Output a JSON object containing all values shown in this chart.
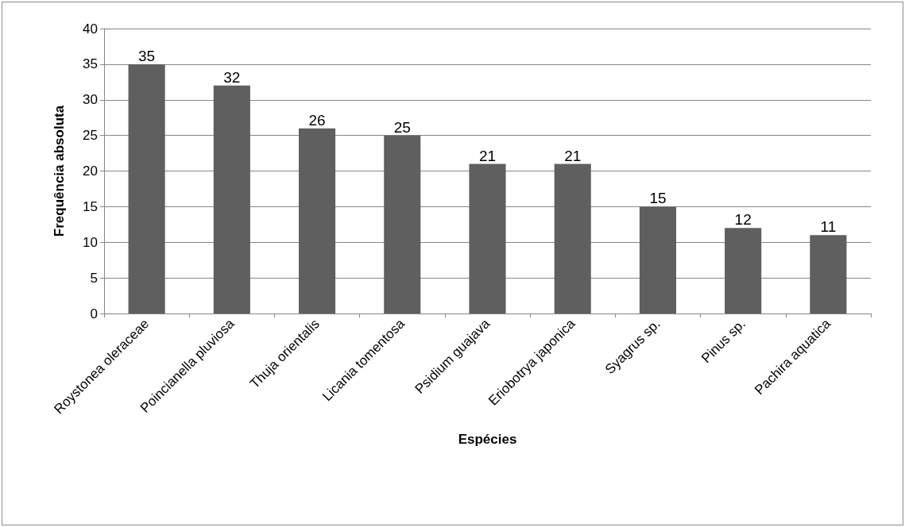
{
  "chart_data": {
    "type": "bar",
    "xlabel": "Espécies",
    "ylabel": "Frequência absoluta",
    "categories": [
      "Roystonea oleraceae",
      "Poincianella pluviosa",
      "Thuja orientalis",
      "Licania tomentosa",
      "Psidium guajava",
      "Eriobotrya japonica",
      "Syagrus sp.",
      "Pinus sp.",
      "Pachira aquatica"
    ],
    "values": [
      35,
      32,
      26,
      25,
      21,
      21,
      15,
      12,
      11
    ],
    "color": "#5f5f5f",
    "ylim": [
      0,
      40
    ],
    "yticks": [
      0,
      5,
      10,
      15,
      20,
      25,
      30,
      35,
      40
    ],
    "grid": "y",
    "data_labels": true
  }
}
